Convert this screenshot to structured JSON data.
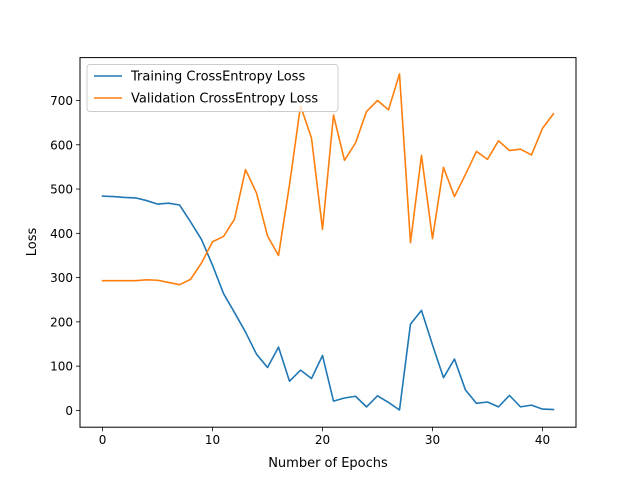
{
  "chart_data": {
    "type": "line",
    "xlabel": "Number of Epochs",
    "ylabel": "Loss",
    "xlim": [
      -2.05,
      43.05
    ],
    "ylim": [
      -37.9,
      796.9
    ],
    "xticks": [
      0,
      10,
      20,
      30,
      40
    ],
    "yticks": [
      0,
      100,
      200,
      300,
      400,
      500,
      600,
      700
    ],
    "grid": false,
    "legend_position": "top-left",
    "x": [
      0,
      1,
      2,
      3,
      4,
      5,
      6,
      7,
      8,
      9,
      10,
      11,
      12,
      13,
      14,
      15,
      16,
      17,
      18,
      19,
      20,
      21,
      22,
      23,
      24,
      25,
      26,
      27,
      28,
      29,
      30,
      31,
      32,
      33,
      34,
      35,
      36,
      37,
      38,
      39,
      40,
      41
    ],
    "series": [
      {
        "name": "Training CrossEntropy Loss",
        "color": "#1f77b4",
        "values": [
          484,
          483,
          481,
          480,
          474,
          466,
          468,
          464,
          426,
          386,
          328,
          264,
          221,
          177,
          127,
          97,
          143,
          66,
          91,
          72,
          124,
          21,
          28,
          32,
          8,
          33,
          18,
          1,
          195,
          226,
          148,
          74,
          116,
          46,
          16,
          19,
          8,
          34,
          8,
          12,
          3,
          2
        ]
      },
      {
        "name": "Validation CrossEntropy Loss",
        "color": "#ff7f0e",
        "values": [
          293,
          293,
          293,
          293,
          295,
          294,
          289,
          284,
          296,
          333,
          381,
          393,
          432,
          544,
          491,
          394,
          350,
          510,
          688,
          615,
          409,
          667,
          565,
          604,
          675,
          700,
          679,
          760,
          379,
          576,
          388,
          549,
          483,
          533,
          585,
          567,
          609,
          587,
          590,
          577,
          637,
          670
        ]
      }
    ]
  }
}
